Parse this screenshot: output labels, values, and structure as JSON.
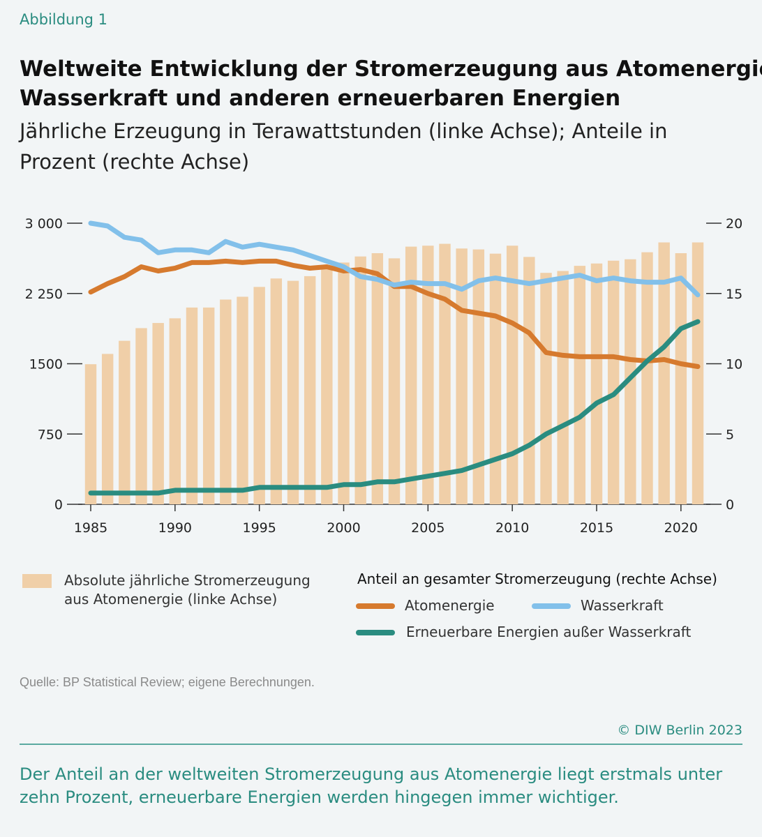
{
  "header": {
    "figure_label": "Abbildung 1",
    "title_line1": "Weltweite Entwicklung der Stromerzeugung aus Atomenergie,",
    "title_line2": "Wasserkraft und anderen erneuerbaren Energien",
    "subtitle_line1": "Jährliche Erzeugung in Terawattstunden (linke Achse); Anteile in",
    "subtitle_line2": "Prozent (rechte Achse)"
  },
  "chart_data": {
    "type": "bar+line",
    "x": [
      1985,
      1986,
      1987,
      1988,
      1989,
      1990,
      1991,
      1992,
      1993,
      1994,
      1995,
      1996,
      1997,
      1998,
      1999,
      2000,
      2001,
      2002,
      2003,
      2004,
      2005,
      2006,
      2007,
      2008,
      2009,
      2010,
      2011,
      2012,
      2013,
      2014,
      2015,
      2016,
      2017,
      2018,
      2019,
      2020,
      2021
    ],
    "left_axis": {
      "ylim": [
        0,
        3000
      ],
      "ticks": [
        0,
        750,
        1500,
        2250,
        3000
      ],
      "tick_labels": [
        "0",
        "750",
        "1500",
        "2 250",
        "3 000"
      ]
    },
    "right_axis": {
      "ylim": [
        0,
        20
      ],
      "ticks": [
        0,
        5,
        10,
        15,
        20
      ],
      "tick_labels": [
        "0",
        "5",
        "10",
        "15",
        "20"
      ]
    },
    "x_ticks": [
      1985,
      1990,
      1995,
      2000,
      2005,
      2010,
      2015,
      2020
    ],
    "x_tick_labels": [
      "1985",
      "1990",
      "1995",
      "2000",
      "2005",
      "2010",
      "2015",
      "2020"
    ],
    "bars": {
      "name": "Absolute jährliche Stromerzeugung aus Atomenergie (linke Achse)",
      "color": "#f0cfa8",
      "values": [
        1495,
        1605,
        1745,
        1880,
        1935,
        1985,
        2100,
        2100,
        2185,
        2215,
        2320,
        2410,
        2385,
        2435,
        2545,
        2580,
        2645,
        2680,
        2625,
        2750,
        2760,
        2780,
        2730,
        2720,
        2675,
        2760,
        2640,
        2470,
        2490,
        2545,
        2570,
        2600,
        2615,
        2690,
        2795,
        2680,
        2795
      ]
    },
    "series": [
      {
        "name": "Atomenergie",
        "axis": "right",
        "color": "#d67a2e",
        "values": [
          15.1,
          15.7,
          16.2,
          16.9,
          16.6,
          16.8,
          17.2,
          17.2,
          17.3,
          17.2,
          17.3,
          17.3,
          17.0,
          16.8,
          16.9,
          16.6,
          16.7,
          16.4,
          15.5,
          15.5,
          15.0,
          14.6,
          13.8,
          13.6,
          13.4,
          12.9,
          12.2,
          10.8,
          10.6,
          10.5,
          10.5,
          10.5,
          10.3,
          10.2,
          10.3,
          10.0,
          9.8
        ]
      },
      {
        "name": "Wasserkraft",
        "axis": "right",
        "color": "#82c0ea",
        "values": [
          20.0,
          19.8,
          19.0,
          18.8,
          17.9,
          18.1,
          18.1,
          17.9,
          18.7,
          18.3,
          18.5,
          18.3,
          18.1,
          17.7,
          17.3,
          16.9,
          16.2,
          16.0,
          15.6,
          15.8,
          15.7,
          15.7,
          15.3,
          15.9,
          16.1,
          15.9,
          15.7,
          15.9,
          16.1,
          16.3,
          15.9,
          16.1,
          15.9,
          15.8,
          15.8,
          16.1,
          14.9
        ]
      },
      {
        "name": "Erneuerbare Energien außer Wasserkraft",
        "axis": "right",
        "color": "#2a8c80",
        "values": [
          0.8,
          0.8,
          0.8,
          0.8,
          0.8,
          1.0,
          1.0,
          1.0,
          1.0,
          1.0,
          1.2,
          1.2,
          1.2,
          1.2,
          1.2,
          1.4,
          1.4,
          1.6,
          1.6,
          1.8,
          2.0,
          2.2,
          2.4,
          2.8,
          3.2,
          3.6,
          4.2,
          5.0,
          5.6,
          6.2,
          7.2,
          7.8,
          9.0,
          10.2,
          11.2,
          12.5,
          13.0
        ]
      }
    ]
  },
  "legend": {
    "bars_line1": "Absolute jährliche Stromerzeugung",
    "bars_line2": "aus Atomenergie (linke Achse)",
    "group_title": "Anteil an gesamter Stromerzeugung (rechte Achse)",
    "nuclear": "Atomenergie",
    "hydro": "Wasserkraft",
    "renewables": "Erneuerbare Energien außer Wasserkraft"
  },
  "footer": {
    "source": "Quelle: BP Statistical Review; eigene Berechnungen.",
    "copyright": "© DIW Berlin 2023",
    "caption": "Der Anteil an der weltweiten Stromerzeugung aus Atomenergie liegt erstmals unter zehn Prozent, erneuerbare Energien werden hingegen immer wichtiger."
  }
}
